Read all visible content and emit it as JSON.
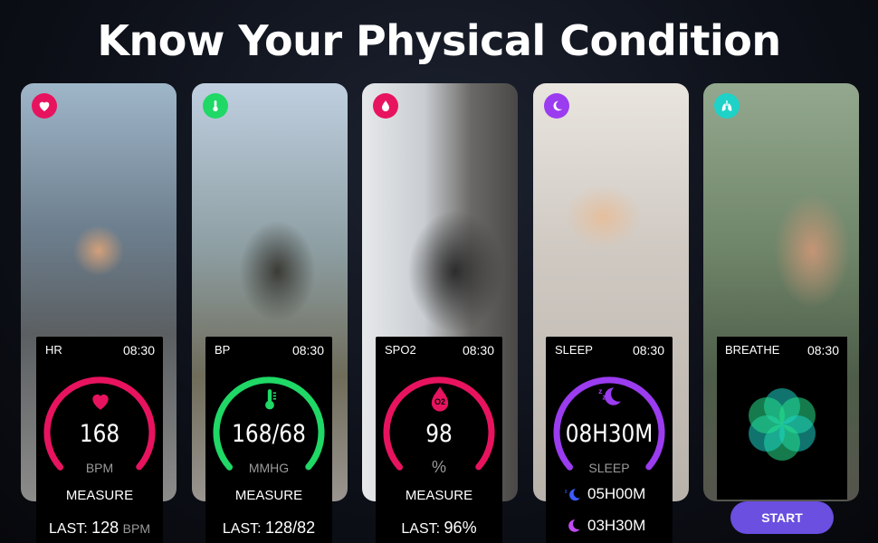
{
  "headline": "Know Your Physical Condition",
  "colors": {
    "hr": "#e8135f",
    "bp": "#1fd866",
    "spo2": "#e8135f",
    "sleep": "#9b3cf0",
    "breathe": "#1ed2c8",
    "start_button": "#6a4fe0"
  },
  "cards": [
    {
      "badge_icon": "heart-icon",
      "label": "HR",
      "time": "08:30",
      "value": "168",
      "unit": "BPM",
      "action": "MEASURE",
      "last_prefix": "LAST:",
      "last_value": "128",
      "last_unit": "BPM"
    },
    {
      "badge_icon": "thermometer-icon",
      "label": "BP",
      "time": "08:30",
      "value": "168/68",
      "unit": "MMHG",
      "action": "MEASURE",
      "last_prefix": "LAST:",
      "last_value": "128/82"
    },
    {
      "badge_icon": "oxygen-drop-icon",
      "label": "SPO2",
      "time": "08:30",
      "value": "98",
      "unit": "%",
      "icon_text": "O2",
      "action": "MEASURE",
      "last_prefix": "LAST:",
      "last_value": "96%"
    },
    {
      "badge_icon": "moon-zz-icon",
      "label": "SLEEP",
      "time": "08:30",
      "value": "08H30M",
      "unit": "SLEEP",
      "deep_sleep": "05H00M",
      "light_sleep": "03H30M"
    },
    {
      "badge_icon": "lungs-icon",
      "label": "BREATHE",
      "time": "08:30",
      "button": "START"
    }
  ]
}
